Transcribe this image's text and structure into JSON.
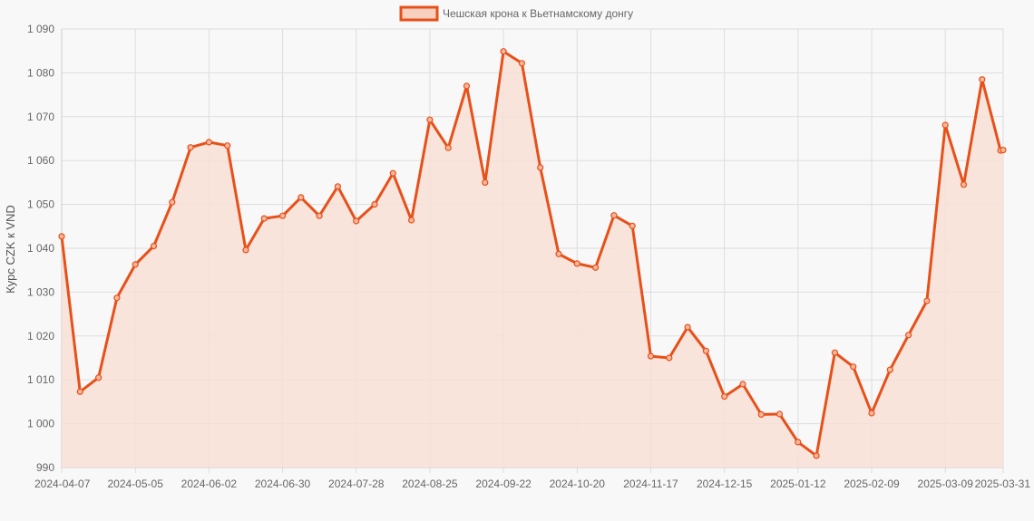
{
  "chart_data": {
    "type": "area",
    "legend": {
      "position": "top",
      "label": "Чешская крона к Вьетнамскому донгу"
    },
    "ylabel": "Курс CZK к VND",
    "xlabel": "",
    "ylim": [
      990,
      1090
    ],
    "grid": true,
    "yticks": [
      "1 090",
      "1 080",
      "1 070",
      "1 060",
      "1 050",
      "1 040",
      "1 030",
      "1 020",
      "1 010",
      "1 000",
      "990"
    ],
    "xtick_labels": [
      "2024-04-07",
      "2024-05-05",
      "2024-06-02",
      "2024-06-30",
      "2024-07-28",
      "2024-08-25",
      "2024-09-22",
      "2024-10-20",
      "2024-11-17",
      "2024-12-15",
      "2025-01-12",
      "2025-02-09",
      "2025-03-09",
      "2025-03-31"
    ],
    "x": [
      "2024-04-07",
      "2024-04-14",
      "2024-04-21",
      "2024-04-28",
      "2024-05-05",
      "2024-05-12",
      "2024-05-19",
      "2024-05-26",
      "2024-06-02",
      "2024-06-09",
      "2024-06-16",
      "2024-06-23",
      "2024-06-30",
      "2024-07-07",
      "2024-07-14",
      "2024-07-21",
      "2024-07-28",
      "2024-08-04",
      "2024-08-11",
      "2024-08-18",
      "2024-08-25",
      "2024-09-01",
      "2024-09-08",
      "2024-09-15",
      "2024-09-22",
      "2024-09-29",
      "2024-10-06",
      "2024-10-13",
      "2024-10-20",
      "2024-10-27",
      "2024-11-03",
      "2024-11-10",
      "2024-11-17",
      "2024-11-24",
      "2024-12-01",
      "2024-12-08",
      "2024-12-15",
      "2024-12-22",
      "2024-12-29",
      "2025-01-05",
      "2025-01-12",
      "2025-01-19",
      "2025-01-26",
      "2025-02-02",
      "2025-02-09",
      "2025-02-16",
      "2025-02-23",
      "2025-03-02",
      "2025-03-09",
      "2025-03-16",
      "2025-03-23",
      "2025-03-30",
      "2025-03-31"
    ],
    "series": [
      {
        "name": "Чешская крона к Вьетнамскому донгу",
        "color": "#e8501a",
        "fill": "#f8e0d6",
        "values": [
          1042.7,
          1007.3,
          1010.5,
          1028.7,
          1036.3,
          1040.5,
          1050.5,
          1063.0,
          1064.2,
          1063.4,
          1039.6,
          1046.8,
          1047.4,
          1051.6,
          1047.4,
          1054.1,
          1046.2,
          1050.0,
          1057.1,
          1046.4,
          1069.3,
          1062.9,
          1077.0,
          1055.0,
          1084.9,
          1082.2,
          1058.4,
          1038.7,
          1036.5,
          1035.6,
          1047.5,
          1045.1,
          1015.4,
          1015.0,
          1022.0,
          1016.6,
          1006.2,
          1009.0,
          1002.1,
          1002.2,
          995.8,
          992.7,
          1016.2,
          1013.0,
          1002.4,
          1012.3,
          1020.2,
          1028.0,
          1068.1,
          1054.5,
          1078.5,
          1062.3,
          1062.4
        ]
      }
    ]
  }
}
